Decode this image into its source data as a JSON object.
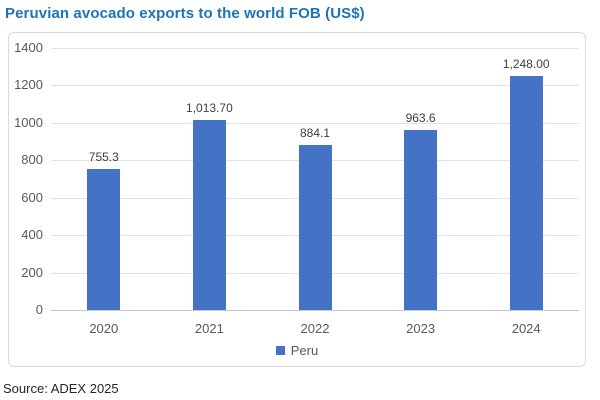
{
  "chart_data": {
    "type": "bar",
    "title": "Peruvian avocado exports to the world FOB (US$)",
    "categories": [
      "2020",
      "2021",
      "2022",
      "2023",
      "2024"
    ],
    "series": [
      {
        "name": "Peru",
        "values": [
          755.3,
          1013.7,
          884.1,
          963.6,
          1248.0
        ]
      }
    ],
    "value_labels": [
      "755.3",
      "1,013.70",
      "884.1",
      "963.6",
      "1,248.00"
    ],
    "xlabel": "",
    "ylabel": "",
    "ylim": [
      0,
      1400
    ],
    "yticks": [
      0,
      200,
      400,
      600,
      800,
      1000,
      1200,
      1400
    ],
    "ytick_labels": [
      "0",
      "200",
      "400",
      "600",
      "800",
      "1000",
      "1200",
      "1400"
    ],
    "grid": true,
    "legend_position": "bottom",
    "bar_color": "#4472C4",
    "title_color": "#1E73BA"
  },
  "footer": {
    "source": "Source: ADEX 2025"
  }
}
